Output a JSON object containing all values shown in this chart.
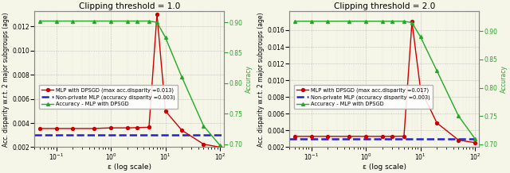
{
  "plot1": {
    "title": "Clipping threshold = 1.0",
    "xlabel": "ε (log scale)",
    "ylabel_left": "Acc. disparity w.r.t. 2 major subgroups (age)",
    "ylabel_right": "Accuracy",
    "epsilon": [
      0.05,
      0.1,
      0.2,
      0.5,
      1.0,
      2.0,
      3.0,
      5.0,
      7.0,
      10.0,
      20.0,
      50.0,
      100.0
    ],
    "red_disparity": [
      0.00355,
      0.00355,
      0.00355,
      0.00355,
      0.0036,
      0.0036,
      0.00362,
      0.00365,
      0.013,
      0.005,
      0.0034,
      0.00225,
      0.002
    ],
    "blue_disparity": 0.003,
    "green_accuracy": [
      0.902,
      0.902,
      0.902,
      0.902,
      0.902,
      0.902,
      0.902,
      0.902,
      0.9,
      0.875,
      0.81,
      0.73,
      0.698
    ],
    "ylim_left": [
      0.002,
      0.01325
    ],
    "ylim_right": [
      0.695,
      0.918
    ],
    "yticks_left": [
      0.002,
      0.004,
      0.006,
      0.008,
      0.01,
      0.012
    ],
    "yticks_right": [
      0.7,
      0.75,
      0.8,
      0.85,
      0.9
    ],
    "legend_dpsgd": "MLP with DPSGD (max acc.disparity =0.013)",
    "legend_nonprivate": "Non-private MLP (accuracy disparity =0.003)",
    "legend_accuracy": "Accuracy - MLP with DPSGD"
  },
  "plot2": {
    "title": "Clipping threshold = 2.0",
    "xlabel": "ε (log scale)",
    "ylabel_left": "Acc. disparity w.r.t. 2 major subgroups (age)",
    "ylabel_right": "Accuracy",
    "epsilon": [
      0.05,
      0.1,
      0.2,
      0.5,
      1.0,
      2.0,
      3.0,
      5.0,
      7.0,
      10.0,
      20.0,
      50.0,
      100.0
    ],
    "red_disparity": [
      0.0033,
      0.0033,
      0.0033,
      0.0033,
      0.0033,
      0.0033,
      0.0033,
      0.00332,
      0.017,
      0.009,
      0.0049,
      0.00285,
      0.00255
    ],
    "blue_disparity": 0.003,
    "green_accuracy": [
      0.9175,
      0.9175,
      0.9175,
      0.9175,
      0.9175,
      0.9175,
      0.9175,
      0.9175,
      0.915,
      0.89,
      0.83,
      0.75,
      0.71
    ],
    "ylim_left": [
      0.002,
      0.01825
    ],
    "ylim_right": [
      0.695,
      0.935
    ],
    "yticks_left": [
      0.002,
      0.004,
      0.006,
      0.008,
      0.01,
      0.012,
      0.014,
      0.016
    ],
    "yticks_right": [
      0.7,
      0.75,
      0.8,
      0.85,
      0.9
    ],
    "legend_dpsgd": "MLP with DPSGD (max acc.disparity =0.017)",
    "legend_nonprivate": "Non-private MLP (accuracy disparity =0.003)",
    "legend_accuracy": "Accuracy - MLP with DPSGD"
  },
  "xlim": [
    0.04,
    120
  ],
  "xticks": [
    0.1,
    1.0,
    10.0,
    100.0
  ],
  "red_color": "#cc0000",
  "blue_color": "#2222cc",
  "green_color": "#22aa22",
  "bg_color": "#f5f5e8",
  "grid_color": "#bbbbbb"
}
